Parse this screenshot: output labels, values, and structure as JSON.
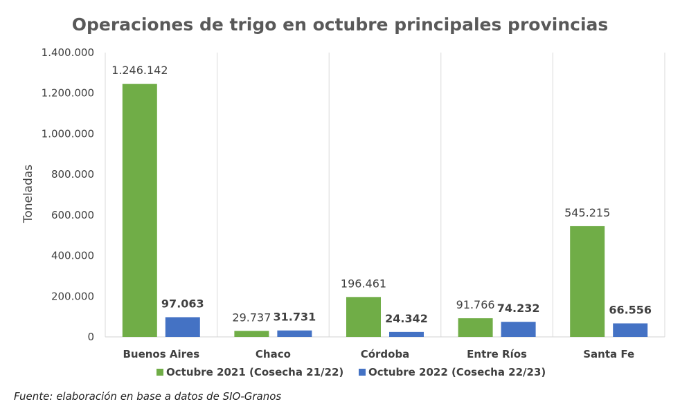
{
  "colors": {
    "series1": "#70AD47",
    "series2": "#4472C4",
    "grid": "#D9D9D9",
    "text": "#404040"
  },
  "source_note": "Fuente: elaboración en base a datos de SIO-Granos",
  "chart_data": {
    "type": "bar",
    "title": "Operaciones de trigo en octubre principales provincias",
    "xlabel": "",
    "ylabel": "Toneladas",
    "ylim": [
      0,
      1400000
    ],
    "yticks": [
      0,
      200000,
      400000,
      600000,
      800000,
      1000000,
      1200000,
      1400000
    ],
    "ytick_labels": [
      "0",
      "200.000",
      "400.000",
      "600.000",
      "800.000",
      "1.000.000",
      "1.200.000",
      "1.400.000"
    ],
    "categories": [
      "Buenos Aires",
      "Chaco",
      "Córdoba",
      "Entre Ríos",
      "Santa Fe"
    ],
    "grid": "vertical category separators",
    "legend_position": "bottom",
    "series": [
      {
        "name": "Octubre 2021 (Cosecha 21/22)",
        "values": [
          1246142,
          29737,
          196461,
          91766,
          545215
        ],
        "labels": [
          "1.246.142",
          "29.737",
          "196.461",
          "91.766",
          "545.215"
        ]
      },
      {
        "name": "Octubre 2022 (Cosecha 22/23)",
        "values": [
          97063,
          31731,
          24342,
          74232,
          66556
        ],
        "labels": [
          "97.063",
          "31.731",
          "24.342",
          "74.232",
          "66.556"
        ]
      }
    ]
  }
}
